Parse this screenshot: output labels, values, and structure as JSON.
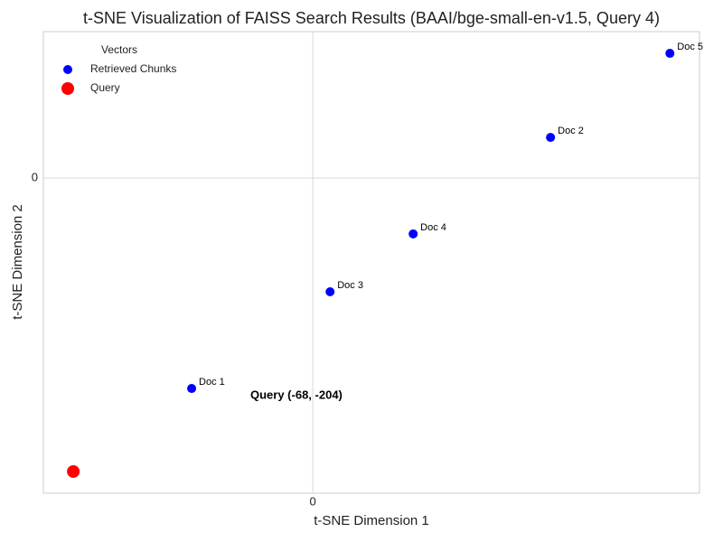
{
  "chart_data": {
    "type": "scatter",
    "title": "t-SNE Visualization of FAISS Search Results (BAAI/bge-small-en-v1.5, Query 4)",
    "x_label": "t-SNE Dimension 1",
    "y_label": "t-SNE Dimension 2",
    "legend_title": "Vectors",
    "legend": "upper left",
    "grid": true,
    "xlim": [
      -76.5,
      109.8
    ],
    "ylim": [
      -219.1,
      101.7
    ],
    "xticks": [
      0
    ],
    "yticks": [
      0
    ],
    "series": [
      {
        "name": "Retrieved Chunks",
        "color": "#0000ff",
        "x": [
          -34.4,
          67.5,
          4.9,
          28.5,
          101.4
        ],
        "y": [
          -146.3,
          28.2,
          -79.1,
          -38.9,
          86.6
        ],
        "labels": [
          "Doc 1",
          "Doc 2",
          "Doc 3",
          "Doc 4",
          "Doc 5"
        ]
      },
      {
        "name": "Query",
        "color": "#ff0000",
        "x": [
          -68
        ],
        "y": [
          -204
        ]
      }
    ],
    "annotation": "Query (-68, -204)"
  }
}
